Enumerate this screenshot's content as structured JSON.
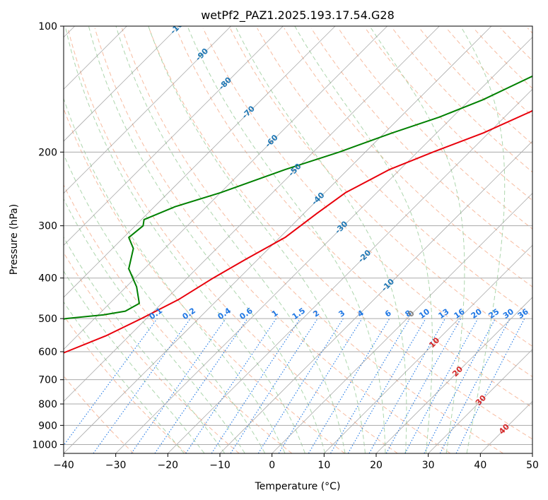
{
  "chart_data": {
    "type": "line",
    "title": "wetPf2_PAZ1.2025.193.17.54.G28",
    "xlabel": "Temperature (°C)",
    "ylabel": "Pressure (hPa)",
    "xlim": [
      -40,
      50
    ],
    "ylim": [
      1050,
      100
    ],
    "y_scale": "log",
    "grid": true,
    "x_ticks": [
      "−40",
      "−30",
      "−20",
      "−10",
      "0",
      "10",
      "20",
      "30",
      "40",
      "50"
    ],
    "x_tick_values": [
      -40,
      -30,
      -20,
      -10,
      0,
      10,
      20,
      30,
      40,
      50
    ],
    "y_ticks": [
      "100",
      "200",
      "300",
      "400",
      "500",
      "600",
      "700",
      "800",
      "900",
      "1000"
    ],
    "y_tick_values": [
      100,
      200,
      300,
      400,
      500,
      600,
      700,
      800,
      900,
      1000
    ],
    "colors": {
      "temperature": "#e8000b",
      "dewpoint": "#008000",
      "dry_adiabat": "#f4a582",
      "moist_adiabat": "#9fcf9f",
      "mixing_ratio": "#1f77e4",
      "isotherm": "#888888",
      "isotherm_label_negative": "#1f77b4",
      "isotherm_label_positive": "#d62728",
      "isotherm_label_zero": "#808080"
    },
    "series": [
      {
        "key": "temperature",
        "pressure": [
          100,
          120,
          140,
          160,
          180,
          200,
          220,
          250,
          280,
          320,
          360,
          400,
          450,
          500,
          550,
          600,
          650,
          700,
          750,
          800,
          850,
          900,
          940,
          970,
          980,
          990,
          1000
        ],
        "values": [
          -3.5,
          -7.2,
          -11.9,
          -16.0,
          -21.0,
          -27.0,
          -32.0,
          -36.0,
          -37.5,
          -39.0,
          -42.3,
          -45.0,
          -47.5,
          -51.0,
          -54.5,
          -59.0,
          -63.0,
          -67.0,
          -70.0,
          -72.0,
          -75.2,
          -79.0,
          -88.0,
          -99.0,
          -101.0,
          -101.5,
          -101.0
        ]
      },
      {
        "key": "dewpoint",
        "pressure": [
          100,
          115,
          130,
          150,
          165,
          180,
          200,
          220,
          250,
          270,
          290,
          300,
          320,
          340,
          380,
          420,
          460,
          480,
          490,
          500,
          520,
          540,
          560,
          580,
          600,
          620,
          640,
          660,
          680,
          700,
          710,
          720,
          740,
          745,
          760,
          780,
          800,
          820,
          860,
          870,
          880,
          900,
          920,
          930,
          960,
          980,
          995
        ],
        "values": [
          -10.0,
          -16.0,
          -22.0,
          -27.5,
          -32.5,
          -38.5,
          -45.0,
          -52.0,
          -60.0,
          -66.0,
          -69.5,
          -68.5,
          -69.0,
          -66.0,
          -63.0,
          -58.0,
          -54.3,
          -55.5,
          -59.0,
          -65.5,
          -70.0,
          -74.0,
          -77.0,
          -76.0,
          -73.5,
          -72.5,
          -74.0,
          -63.5,
          -70.0,
          -66.3,
          -80.0,
          -89.0,
          -100.0,
          -101.0,
          -96.5,
          -94.0,
          -94.0,
          -97.0,
          -90.0,
          -88.0,
          -100.0,
          -98.5,
          -100.0,
          -105.0,
          -106.0,
          -103.0,
          -97.0
        ]
      }
    ],
    "isotherm_labels": [
      "-100",
      "-90",
      "-80",
      "-70",
      "-60",
      "-50",
      "-40",
      "-30",
      "-20",
      "-10",
      "0",
      "10",
      "20",
      "30",
      "40"
    ],
    "isotherm_label_values": [
      -100,
      -90,
      -80,
      -70,
      -60,
      -50,
      -40,
      -30,
      -20,
      -10,
      0,
      10,
      20,
      30,
      40
    ],
    "mixing_ratio_labels": [
      "0.1",
      "0.2",
      "0.4",
      "0.6",
      "1",
      "1.5",
      "2",
      "3",
      "4",
      "6",
      "8",
      "10",
      "13",
      "16",
      "20",
      "25",
      "30",
      "36"
    ],
    "mixing_ratio_values": [
      0.1,
      0.2,
      0.4,
      0.6,
      1,
      1.5,
      2,
      3,
      4,
      6,
      8,
      10,
      13,
      16,
      20,
      25,
      30,
      36
    ]
  }
}
